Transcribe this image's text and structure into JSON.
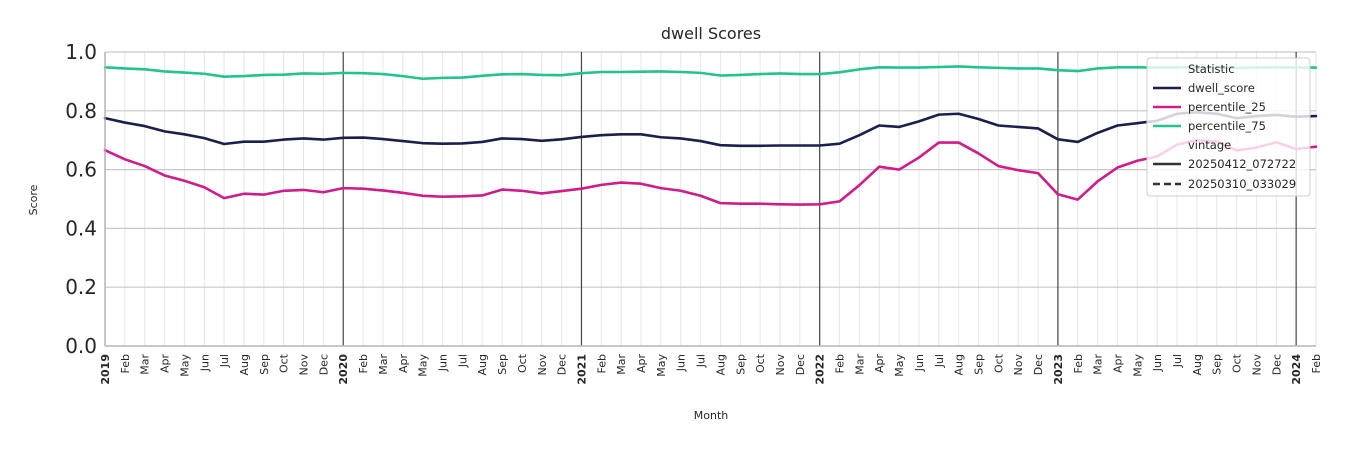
{
  "chart_data": {
    "type": "line",
    "title": "dwell Scores",
    "xlabel": "Month",
    "ylabel": "Score",
    "ylim": [
      0,
      1
    ],
    "yticks": [
      "0.0",
      "0.2",
      "0.4",
      "0.6",
      "0.8",
      "1.0"
    ],
    "grid": true,
    "legend_position": "top-right",
    "x_tick_labels": [
      "2019",
      "Feb",
      "Mar",
      "Apr",
      "May",
      "Jun",
      "Jul",
      "Aug",
      "Sep",
      "Oct",
      "Nov",
      "Dec",
      "2020",
      "Feb",
      "Mar",
      "Apr",
      "May",
      "Jun",
      "Jul",
      "Aug",
      "Sep",
      "Oct",
      "Nov",
      "Dec",
      "2021",
      "Feb",
      "Mar",
      "Apr",
      "May",
      "Jun",
      "Jul",
      "Aug",
      "Sep",
      "Oct",
      "Nov",
      "Dec",
      "2022",
      "Feb",
      "Mar",
      "Apr",
      "May",
      "Jun",
      "Jul",
      "Aug",
      "Sep",
      "Oct",
      "Nov",
      "Dec",
      "2023",
      "Feb",
      "Mar",
      "Apr",
      "May",
      "Jun",
      "Jul",
      "Aug",
      "Sep",
      "Oct",
      "Nov",
      "Dec",
      "2024",
      "Feb"
    ],
    "x_start": "2019-01",
    "series": [
      {
        "name": "dwell_score",
        "color": "#1b1f4d",
        "values": [
          0.775,
          0.76,
          0.748,
          0.73,
          0.72,
          0.707,
          0.687,
          0.695,
          0.695,
          0.702,
          0.706,
          0.702,
          0.708,
          0.709,
          0.704,
          0.697,
          0.69,
          0.688,
          0.689,
          0.694,
          0.706,
          0.704,
          0.698,
          0.703,
          0.711,
          0.717,
          0.72,
          0.72,
          0.71,
          0.706,
          0.697,
          0.683,
          0.681,
          0.681,
          0.682,
          0.682,
          0.682,
          0.688,
          0.717,
          0.75,
          0.745,
          0.764,
          0.787,
          0.79,
          0.772,
          0.75,
          0.745,
          0.74,
          0.703,
          0.694,
          0.725,
          0.75,
          0.758,
          0.766,
          0.79,
          0.795,
          0.79,
          0.775,
          0.782,
          0.786,
          0.78,
          0.782
        ]
      },
      {
        "name": "percentile_25",
        "color": "#d01c8b",
        "values": [
          0.666,
          0.635,
          0.612,
          0.58,
          0.562,
          0.54,
          0.503,
          0.518,
          0.515,
          0.528,
          0.531,
          0.523,
          0.537,
          0.535,
          0.529,
          0.521,
          0.511,
          0.508,
          0.509,
          0.512,
          0.532,
          0.528,
          0.519,
          0.527,
          0.535,
          0.548,
          0.556,
          0.552,
          0.537,
          0.528,
          0.511,
          0.486,
          0.484,
          0.484,
          0.482,
          0.481,
          0.482,
          0.492,
          0.547,
          0.61,
          0.6,
          0.641,
          0.692,
          0.692,
          0.655,
          0.612,
          0.598,
          0.588,
          0.516,
          0.498,
          0.56,
          0.607,
          0.63,
          0.645,
          0.685,
          0.7,
          0.695,
          0.665,
          0.675,
          0.693,
          0.67,
          0.678
        ]
      },
      {
        "name": "percentile_75",
        "color": "#22c38e",
        "values": [
          0.948,
          0.944,
          0.941,
          0.934,
          0.93,
          0.926,
          0.916,
          0.918,
          0.922,
          0.923,
          0.927,
          0.926,
          0.929,
          0.928,
          0.925,
          0.918,
          0.909,
          0.912,
          0.913,
          0.919,
          0.924,
          0.925,
          0.922,
          0.921,
          0.928,
          0.932,
          0.932,
          0.933,
          0.934,
          0.932,
          0.929,
          0.92,
          0.922,
          0.925,
          0.927,
          0.925,
          0.925,
          0.931,
          0.941,
          0.948,
          0.947,
          0.947,
          0.949,
          0.951,
          0.948,
          0.946,
          0.944,
          0.944,
          0.938,
          0.935,
          0.944,
          0.948,
          0.948,
          0.947,
          0.948,
          0.948,
          0.946,
          0.946,
          0.947,
          0.948,
          0.947,
          0.947
        ]
      }
    ],
    "legend": {
      "statistic_header": "Statistic",
      "statistic_items": [
        "dwell_score",
        "percentile_25",
        "percentile_75"
      ],
      "vintage_header": "vintage",
      "vintage_items": [
        {
          "label": "20250412_072722",
          "style": "solid"
        },
        {
          "label": "20250310_033029",
          "style": "dashed"
        }
      ]
    }
  }
}
